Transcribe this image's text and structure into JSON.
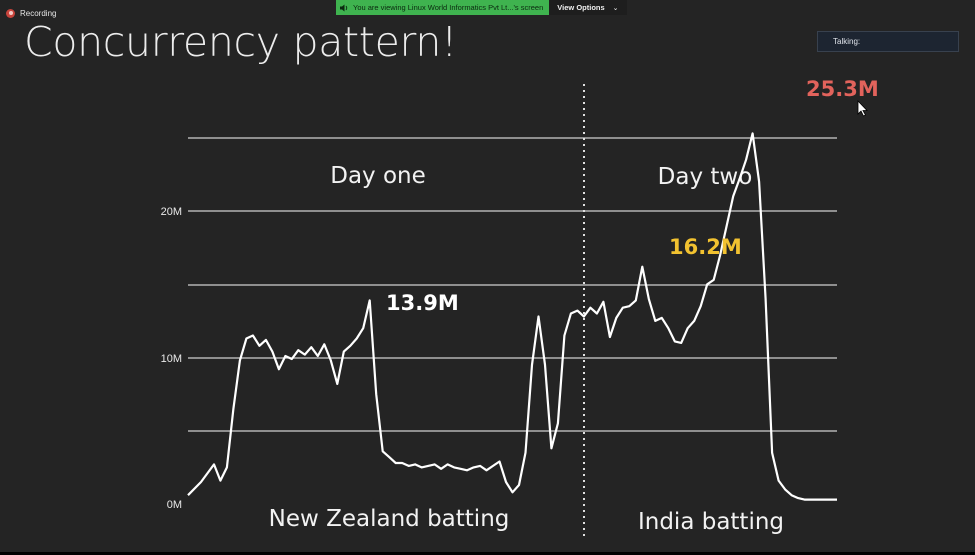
{
  "recording": {
    "label": "Recording"
  },
  "share_banner": {
    "text": "You are viewing Linux World Informatics Pvt Lt...'s screen",
    "view_options": "View Options"
  },
  "talking": {
    "label": "Talking:"
  },
  "slide": {
    "title": "Concurrency pattern!"
  },
  "colors": {
    "background": "#242424",
    "line": "#ffffff",
    "peak_white": "#ffffff",
    "peak_yellow": "#f2c230",
    "peak_red": "#e2635c",
    "banner_green": "#3fb34f"
  },
  "icons": {
    "recording": "record-dot-icon",
    "audio": "speaker-icon",
    "chevron": "chevron-down-icon",
    "cursor": "mouse-cursor-icon"
  },
  "chart_data": {
    "type": "line",
    "title": "",
    "xlabel": "",
    "ylabel": "",
    "y_ticks": [
      "0M",
      "10M",
      "20M"
    ],
    "ylim": [
      0,
      26
    ],
    "grid": true,
    "sections": [
      "Day one",
      "Day two"
    ],
    "bottom_labels": [
      "New Zealand batting",
      "India batting"
    ],
    "annotations": [
      {
        "label": "13.9M",
        "value": 13.9,
        "color": "white"
      },
      {
        "label": "16.2M",
        "value": 16.2,
        "color": "yellow"
      },
      {
        "label": "25.3M",
        "value": 25.3,
        "color": "red"
      }
    ],
    "x": [
      0,
      2,
      4,
      5,
      6,
      7,
      8,
      9,
      10,
      11,
      12,
      13,
      14,
      15,
      16,
      17,
      18,
      19,
      20,
      21,
      22,
      23,
      24,
      25,
      26,
      27,
      28,
      29,
      30,
      31,
      32,
      33,
      34,
      35,
      36,
      37,
      38,
      39,
      40,
      41,
      42,
      43,
      44,
      45,
      46,
      47,
      48,
      49,
      50,
      51,
      52,
      53,
      54,
      55,
      56,
      57,
      58,
      59,
      60,
      61,
      62,
      63,
      64,
      65,
      66,
      67,
      68,
      69,
      70,
      71,
      72,
      73,
      74,
      75,
      76,
      77,
      78,
      79,
      80,
      81,
      82,
      83,
      84,
      85,
      86,
      87,
      88,
      89,
      90,
      91,
      92,
      93,
      94,
      95,
      96,
      97,
      98,
      99,
      100
    ],
    "series": [
      {
        "values": [
          0.6,
          1.5,
          2.7,
          1.6,
          2.5,
          6.5,
          9.8,
          11.3,
          11.5,
          10.8,
          11.2,
          10.4,
          9.2,
          10.1,
          9.9,
          10.5,
          10.2,
          10.7,
          10.1,
          10.9,
          9.8,
          8.2,
          10.4,
          10.8,
          11.3,
          12.0,
          13.9,
          7.5,
          3.6,
          3.2,
          2.8,
          2.8,
          2.6,
          2.7,
          2.5,
          2.6,
          2.7,
          2.4,
          2.7,
          2.5,
          2.4,
          2.3,
          2.5,
          2.6,
          2.3,
          2.6,
          2.9,
          1.5,
          0.8,
          1.3,
          3.5,
          9.5,
          12.8,
          9.5,
          3.8,
          5.5,
          11.5,
          13.0,
          13.2,
          12.8,
          13.4,
          13.0,
          13.8,
          11.4,
          12.7,
          13.4,
          13.5,
          13.9,
          16.2,
          14.0,
          12.5,
          12.7,
          12.0,
          11.1,
          11.0,
          12.0,
          12.5,
          13.5,
          15.0,
          15.3,
          17.0,
          19.0,
          21.0,
          22.2,
          23.5,
          25.3,
          22.0,
          14.0,
          3.5,
          1.6,
          1.0,
          0.6,
          0.4,
          0.3,
          0.3,
          0.3,
          0.3,
          0.3,
          0.3
        ]
      }
    ]
  }
}
